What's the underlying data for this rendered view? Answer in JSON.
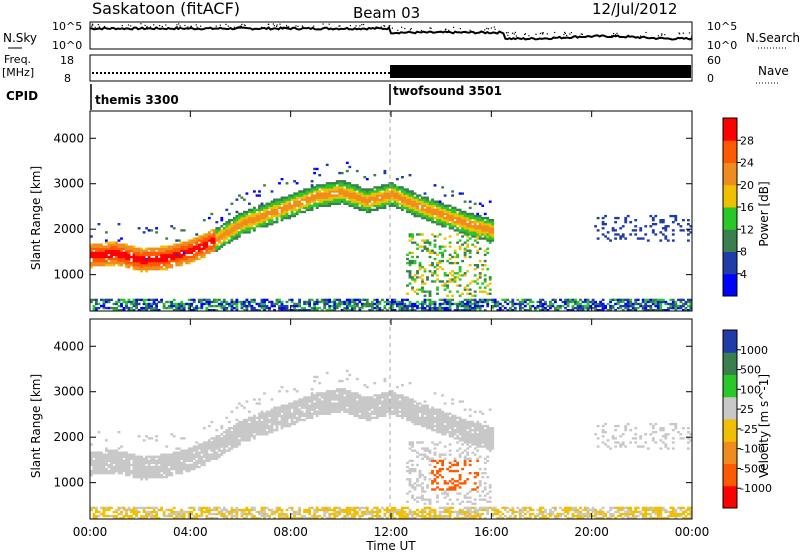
{
  "header": {
    "station": "Saskatoon (fitACF)",
    "beam": "Beam 03",
    "date": "12/Jul/2012"
  },
  "noise_panel": {
    "left_label": "N.Sky",
    "right_label": "N.Search",
    "left_ticks": [
      "10^5",
      "10^0"
    ],
    "right_ticks": [
      "10^5",
      "10^0"
    ]
  },
  "freq_panel": {
    "left_label_1": "Freq.",
    "left_label_2": "[MHz]",
    "right_label": "Nave",
    "left_ticks": [
      "18",
      "8"
    ],
    "right_ticks": [
      "60",
      "0"
    ]
  },
  "cpid_panel": {
    "label": "CPID",
    "programs": [
      {
        "name": "themis 3300",
        "start_hour": 0
      },
      {
        "name": "twofsound 3501",
        "start_hour": 12
      }
    ]
  },
  "colors": {
    "power_scale": [
      "#0000ff",
      "#1f3ca8",
      "#3a7f4d",
      "#28c828",
      "#f0c000",
      "#f08c1e",
      "#ff5a00",
      "#ff0000"
    ],
    "velocity_scale": [
      "#ff0000",
      "#ff5a00",
      "#f08c1e",
      "#f0c000",
      "#c8c8c8",
      "#28c828",
      "#3a7f4d",
      "#1f3ca8"
    ]
  },
  "chart_data": [
    {
      "type": "heatmap",
      "name": "power",
      "ylabel": "Slant Range [km]",
      "yticks": [
        "1000",
        "2000",
        "3000",
        "4000"
      ],
      "ylim": [
        200,
        4600
      ],
      "colorbar_label": "Power [dB]",
      "colorbar_ticks": [
        "28",
        "24",
        "20",
        "16",
        "12",
        "8",
        "4"
      ],
      "clim": [
        0,
        32
      ],
      "bands": [
        {
          "series": "main echo band",
          "points": [
            [
              0,
              1400
            ],
            [
              1,
              1450
            ],
            [
              2,
              1300
            ],
            [
              3,
              1350
            ],
            [
              4,
              1500
            ],
            [
              5,
              1750
            ],
            [
              6,
              2100
            ],
            [
              7,
              2300
            ],
            [
              8,
              2500
            ],
            [
              9,
              2700
            ],
            [
              10,
              2800
            ],
            [
              11,
              2600
            ],
            [
              12,
              2750
            ],
            [
              13,
              2500
            ],
            [
              14,
              2300
            ],
            [
              15,
              2100
            ],
            [
              16,
              1950
            ]
          ],
          "value": 20
        },
        {
          "series": "near range band",
          "points": [
            [
              0,
              300
            ],
            [
              4,
              300
            ],
            [
              8,
              300
            ],
            [
              12,
              300
            ],
            [
              16,
              300
            ],
            [
              20,
              280
            ],
            [
              24,
              280
            ]
          ],
          "value": 10
        }
      ]
    },
    {
      "type": "heatmap",
      "name": "velocity",
      "ylabel": "Slant Range [km]",
      "yticks": [
        "1000",
        "2000",
        "3000",
        "4000"
      ],
      "ylim": [
        200,
        4600
      ],
      "colorbar_label": "Velocity [m s^-1]",
      "colorbar_ticks": [
        "1000",
        "500",
        "100",
        "25",
        "-25",
        "-100",
        "-500",
        "-1000"
      ],
      "clim": [
        -1000,
        1000
      ]
    }
  ],
  "x_axis": {
    "label": "Time UT",
    "ticks": [
      "00:00",
      "04:00",
      "08:00",
      "12:00",
      "16:00",
      "20:00",
      "00:00"
    ]
  }
}
